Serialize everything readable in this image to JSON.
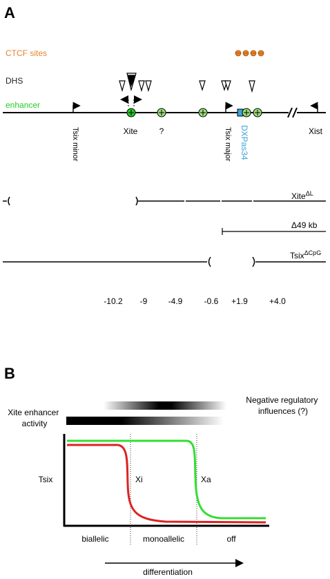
{
  "panel_a": {
    "letter": "A",
    "labels": {
      "ctcf_sites": "CTCF sites",
      "dhs": "DHS",
      "enhancer": "enhancer"
    },
    "genes": {
      "tsix_minor": "Tsix minor",
      "xite": "Xite",
      "unknown": "?",
      "tsix_major": "Tsix major",
      "dxpas34": "DXPas34",
      "xist": "Xist"
    },
    "deletions": {
      "xite_dl": "Xite",
      "xite_dl_sup": "ΔL",
      "d49kb": "Δ49 kb",
      "tsix_dcpg": "Tsix",
      "tsix_dcpg_sup": "ΔCpG"
    },
    "positions": [
      "-10.2",
      "-9",
      "-4.9",
      "-0.6",
      "+1.9",
      "+4.0"
    ],
    "colors": {
      "ctcf": "#e8822a",
      "enhancer": "#22cc22",
      "enhancer_fill": "#9be07a",
      "dxpas34": "#3aa6d8"
    }
  },
  "panel_b": {
    "letter": "B",
    "xite_activity": [
      "Xite enhancer",
      "activity"
    ],
    "negative_influences": [
      "Negative regulatory",
      "influences (?)"
    ],
    "ylabel": "Tsix",
    "curve_labels": {
      "xi": "Xi",
      "xa": "Xa"
    },
    "stages": [
      "biallelic",
      "monoallelic",
      "off"
    ],
    "xlabel": "differentiation",
    "colors": {
      "xa": "#33dd33",
      "xi": "#dd2222"
    }
  }
}
